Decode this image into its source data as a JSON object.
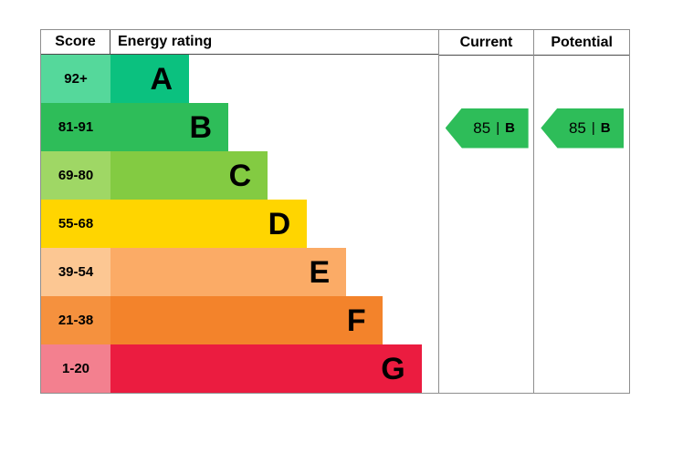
{
  "header": {
    "score_label": "Score",
    "rating_label": "Energy rating",
    "current_label": "Current",
    "potential_label": "Potential"
  },
  "chart_data": {
    "type": "bar",
    "title": "Energy rating",
    "bands": [
      {
        "score": "92+",
        "letter": "A",
        "score_color": "#55d89b",
        "bar_color": "#0bc17f",
        "width_pct": 24
      },
      {
        "score": "81-91",
        "letter": "B",
        "score_color": "#2ebd59",
        "bar_color": "#2ebd59",
        "width_pct": 36
      },
      {
        "score": "69-80",
        "letter": "C",
        "score_color": "#9fd765",
        "bar_color": "#83cb42",
        "width_pct": 48
      },
      {
        "score": "55-68",
        "letter": "D",
        "score_color": "#ffd500",
        "bar_color": "#ffd500",
        "width_pct": 60
      },
      {
        "score": "39-54",
        "letter": "E",
        "score_color": "#fcc793",
        "bar_color": "#fbab66",
        "width_pct": 72
      },
      {
        "score": "21-38",
        "letter": "F",
        "score_color": "#f5913e",
        "bar_color": "#f3832b",
        "width_pct": 83
      },
      {
        "score": "1-20",
        "letter": "G",
        "score_color": "#f3808f",
        "bar_color": "#eb1c40",
        "width_pct": 95
      }
    ],
    "current": {
      "value": "85",
      "separator": "|",
      "letter": "B",
      "arrow_color": "#2ebd59",
      "band_index": 1
    },
    "potential": {
      "value": "85",
      "separator": "|",
      "letter": "B",
      "arrow_color": "#2ebd59",
      "band_index": 1
    }
  }
}
